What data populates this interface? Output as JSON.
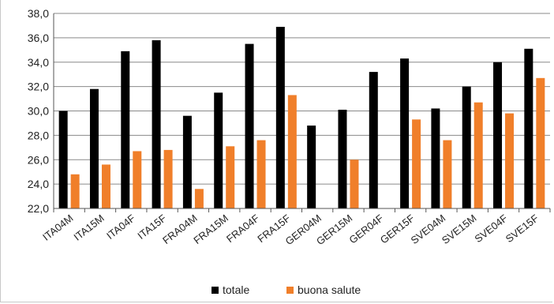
{
  "chart_data": {
    "type": "bar",
    "categories": [
      "ITA04M",
      "ITA15M",
      "ITA04F",
      "ITA15F",
      "FRA04M",
      "FRA15M",
      "FRA04F",
      "FRA15F",
      "GER04M",
      "GER15M",
      "GER04F",
      "GER15F",
      "SVE04M",
      "SVE15M",
      "SVE04F",
      "SVE15F"
    ],
    "series": [
      {
        "name": "totale",
        "color": "#000000",
        "values": [
          30.0,
          31.8,
          34.9,
          35.8,
          29.6,
          31.5,
          35.5,
          36.9,
          28.8,
          30.1,
          33.2,
          34.3,
          30.2,
          32.0,
          34.0,
          35.1
        ]
      },
      {
        "name": "buona salute",
        "color": "#f07f2a",
        "values": [
          24.8,
          25.6,
          26.7,
          26.8,
          23.6,
          27.1,
          27.6,
          31.3,
          null,
          26.0,
          null,
          29.3,
          27.6,
          30.7,
          29.8,
          32.7
        ]
      }
    ],
    "ylim": [
      22,
      38
    ],
    "yticks": [
      "22,0",
      "24,0",
      "26,0",
      "28,0",
      "30,0",
      "32,0",
      "34,0",
      "36,0",
      "38,0"
    ],
    "grid": true,
    "legend": "bottom",
    "title": "",
    "xlabel": "",
    "ylabel": ""
  }
}
